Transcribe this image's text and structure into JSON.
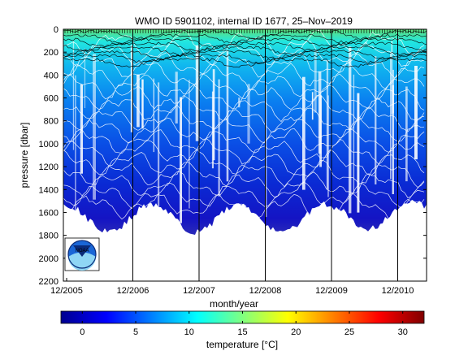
{
  "chart_data": {
    "type": "heatmap",
    "title": "WMO ID 5901102, internal ID 1677, 25–Nov–2019",
    "xlabel": "month/year",
    "ylabel": "pressure [dbar]",
    "x_ticks": [
      "12/2005",
      "12/2006",
      "12/2007",
      "12/2008",
      "12/2009",
      "12/2010"
    ],
    "y_ticks": [
      0,
      200,
      400,
      600,
      800,
      1000,
      1200,
      1400,
      1600,
      1800,
      2000,
      2200
    ],
    "ylim": [
      2200,
      0
    ],
    "y_reversed": true,
    "colorbar": {
      "label": "temperature [°C]",
      "ticks": [
        0,
        5,
        10,
        15,
        20,
        25,
        30
      ],
      "range": [
        -2,
        32
      ],
      "colormap": "jet"
    },
    "max_profile_depth_dbar": 1800,
    "logo": "noaa-logo"
  }
}
